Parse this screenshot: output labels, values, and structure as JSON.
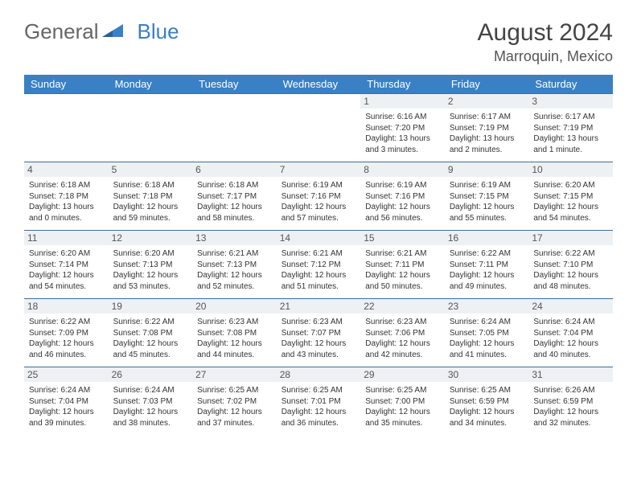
{
  "brand": {
    "general": "General",
    "blue": "Blue"
  },
  "title": "August 2024",
  "location": "Marroquin, Mexico",
  "colors": {
    "header_bg": "#3a80c4",
    "header_text": "#ffffff",
    "daynum_bg": "#eef1f3",
    "border": "#3a6fa0",
    "text": "#333333",
    "page_bg": "#ffffff"
  },
  "dayHeaders": [
    "Sunday",
    "Monday",
    "Tuesday",
    "Wednesday",
    "Thursday",
    "Friday",
    "Saturday"
  ],
  "weeks": [
    [
      null,
      null,
      null,
      null,
      {
        "num": "1",
        "sunrise": "6:16 AM",
        "sunset": "7:20 PM",
        "daylight": "13 hours and 3 minutes."
      },
      {
        "num": "2",
        "sunrise": "6:17 AM",
        "sunset": "7:19 PM",
        "daylight": "13 hours and 2 minutes."
      },
      {
        "num": "3",
        "sunrise": "6:17 AM",
        "sunset": "7:19 PM",
        "daylight": "13 hours and 1 minute."
      }
    ],
    [
      {
        "num": "4",
        "sunrise": "6:18 AM",
        "sunset": "7:18 PM",
        "daylight": "13 hours and 0 minutes."
      },
      {
        "num": "5",
        "sunrise": "6:18 AM",
        "sunset": "7:18 PM",
        "daylight": "12 hours and 59 minutes."
      },
      {
        "num": "6",
        "sunrise": "6:18 AM",
        "sunset": "7:17 PM",
        "daylight": "12 hours and 58 minutes."
      },
      {
        "num": "7",
        "sunrise": "6:19 AM",
        "sunset": "7:16 PM",
        "daylight": "12 hours and 57 minutes."
      },
      {
        "num": "8",
        "sunrise": "6:19 AM",
        "sunset": "7:16 PM",
        "daylight": "12 hours and 56 minutes."
      },
      {
        "num": "9",
        "sunrise": "6:19 AM",
        "sunset": "7:15 PM",
        "daylight": "12 hours and 55 minutes."
      },
      {
        "num": "10",
        "sunrise": "6:20 AM",
        "sunset": "7:15 PM",
        "daylight": "12 hours and 54 minutes."
      }
    ],
    [
      {
        "num": "11",
        "sunrise": "6:20 AM",
        "sunset": "7:14 PM",
        "daylight": "12 hours and 54 minutes."
      },
      {
        "num": "12",
        "sunrise": "6:20 AM",
        "sunset": "7:13 PM",
        "daylight": "12 hours and 53 minutes."
      },
      {
        "num": "13",
        "sunrise": "6:21 AM",
        "sunset": "7:13 PM",
        "daylight": "12 hours and 52 minutes."
      },
      {
        "num": "14",
        "sunrise": "6:21 AM",
        "sunset": "7:12 PM",
        "daylight": "12 hours and 51 minutes."
      },
      {
        "num": "15",
        "sunrise": "6:21 AM",
        "sunset": "7:11 PM",
        "daylight": "12 hours and 50 minutes."
      },
      {
        "num": "16",
        "sunrise": "6:22 AM",
        "sunset": "7:11 PM",
        "daylight": "12 hours and 49 minutes."
      },
      {
        "num": "17",
        "sunrise": "6:22 AM",
        "sunset": "7:10 PM",
        "daylight": "12 hours and 48 minutes."
      }
    ],
    [
      {
        "num": "18",
        "sunrise": "6:22 AM",
        "sunset": "7:09 PM",
        "daylight": "12 hours and 46 minutes."
      },
      {
        "num": "19",
        "sunrise": "6:22 AM",
        "sunset": "7:08 PM",
        "daylight": "12 hours and 45 minutes."
      },
      {
        "num": "20",
        "sunrise": "6:23 AM",
        "sunset": "7:08 PM",
        "daylight": "12 hours and 44 minutes."
      },
      {
        "num": "21",
        "sunrise": "6:23 AM",
        "sunset": "7:07 PM",
        "daylight": "12 hours and 43 minutes."
      },
      {
        "num": "22",
        "sunrise": "6:23 AM",
        "sunset": "7:06 PM",
        "daylight": "12 hours and 42 minutes."
      },
      {
        "num": "23",
        "sunrise": "6:24 AM",
        "sunset": "7:05 PM",
        "daylight": "12 hours and 41 minutes."
      },
      {
        "num": "24",
        "sunrise": "6:24 AM",
        "sunset": "7:04 PM",
        "daylight": "12 hours and 40 minutes."
      }
    ],
    [
      {
        "num": "25",
        "sunrise": "6:24 AM",
        "sunset": "7:04 PM",
        "daylight": "12 hours and 39 minutes."
      },
      {
        "num": "26",
        "sunrise": "6:24 AM",
        "sunset": "7:03 PM",
        "daylight": "12 hours and 38 minutes."
      },
      {
        "num": "27",
        "sunrise": "6:25 AM",
        "sunset": "7:02 PM",
        "daylight": "12 hours and 37 minutes."
      },
      {
        "num": "28",
        "sunrise": "6:25 AM",
        "sunset": "7:01 PM",
        "daylight": "12 hours and 36 minutes."
      },
      {
        "num": "29",
        "sunrise": "6:25 AM",
        "sunset": "7:00 PM",
        "daylight": "12 hours and 35 minutes."
      },
      {
        "num": "30",
        "sunrise": "6:25 AM",
        "sunset": "6:59 PM",
        "daylight": "12 hours and 34 minutes."
      },
      {
        "num": "31",
        "sunrise": "6:26 AM",
        "sunset": "6:59 PM",
        "daylight": "12 hours and 32 minutes."
      }
    ]
  ],
  "labels": {
    "sunrise": "Sunrise: ",
    "sunset": "Sunset: ",
    "daylight": "Daylight: "
  }
}
